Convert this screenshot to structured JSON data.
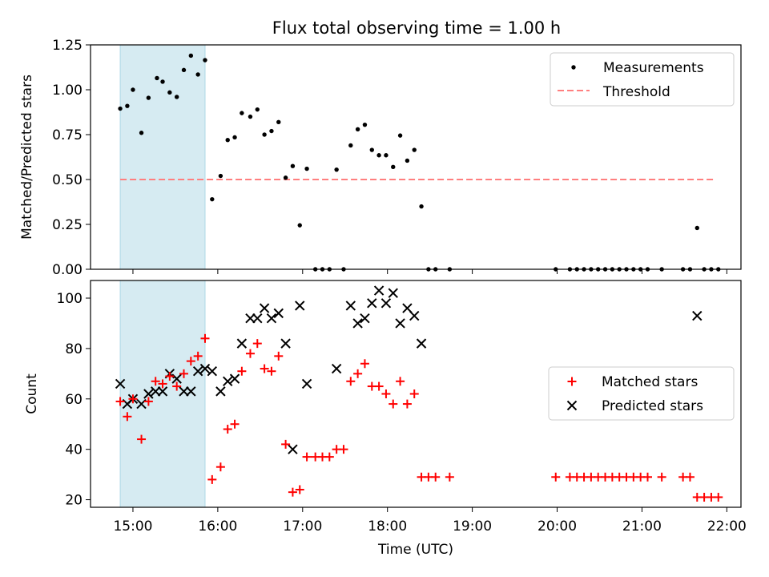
{
  "figure_title": "Flux total observing time = 1.00 h",
  "colors": {
    "measurement": "#000000",
    "threshold": "#ff7f7f",
    "matched": "#ff0000",
    "predicted": "#000000",
    "shade": "#add8e6"
  },
  "chart_data": [
    {
      "type": "scatter",
      "panel": "top",
      "title": "Flux total observing time = 1.00 h",
      "xlabel": "",
      "ylabel": "Matched/Predicted stars",
      "xlim": [
        "14:30",
        "22:10"
      ],
      "ylim": [
        0,
        1.25
      ],
      "yticks": [
        "0.00",
        "0.25",
        "0.50",
        "0.75",
        "1.00",
        "1.25"
      ],
      "shaded_span": [
        "14:51",
        "15:51"
      ],
      "legend": {
        "placement": "top-right",
        "entries": [
          "Measurements",
          "Threshold"
        ]
      },
      "threshold": {
        "name": "Threshold",
        "value": 0.5,
        "x": [
          "14:51",
          "21:51"
        ]
      },
      "series": [
        {
          "name": "Measurements",
          "marker": "dot",
          "points": [
            [
              "14:51",
              0.895
            ],
            [
              "14:56",
              0.91
            ],
            [
              "15:00",
              1.0
            ],
            [
              "15:06",
              0.76
            ],
            [
              "15:11",
              0.955
            ],
            [
              "15:17",
              1.065
            ],
            [
              "15:21",
              1.045
            ],
            [
              "15:26",
              0.985
            ],
            [
              "15:31",
              0.96
            ],
            [
              "15:36",
              1.11
            ],
            [
              "15:41",
              1.19
            ],
            [
              "15:46",
              1.085
            ],
            [
              "15:51",
              1.165
            ],
            [
              "15:56",
              0.39
            ],
            [
              "16:02",
              0.52
            ],
            [
              "16:07",
              0.72
            ],
            [
              "16:12",
              0.735
            ],
            [
              "16:17",
              0.87
            ],
            [
              "16:23",
              0.85
            ],
            [
              "16:28",
              0.89
            ],
            [
              "16:33",
              0.75
            ],
            [
              "16:38",
              0.77
            ],
            [
              "16:43",
              0.82
            ],
            [
              "16:48",
              0.51
            ],
            [
              "16:53",
              0.575
            ],
            [
              "16:58",
              0.245
            ],
            [
              "17:03",
              0.56
            ],
            [
              "17:09",
              0.0
            ],
            [
              "17:14",
              0.0
            ],
            [
              "17:19",
              0.0
            ],
            [
              "17:24",
              0.555
            ],
            [
              "17:29",
              0.0
            ],
            [
              "17:34",
              0.69
            ],
            [
              "17:39",
              0.78
            ],
            [
              "17:44",
              0.805
            ],
            [
              "17:49",
              0.665
            ],
            [
              "17:54",
              0.635
            ],
            [
              "17:59",
              0.635
            ],
            [
              "18:04",
              0.57
            ],
            [
              "18:09",
              0.745
            ],
            [
              "18:14",
              0.605
            ],
            [
              "18:19",
              0.665
            ],
            [
              "18:24",
              0.35
            ],
            [
              "18:29",
              0.0
            ],
            [
              "18:34",
              0.0
            ],
            [
              "18:44",
              0.0
            ],
            [
              "19:59",
              0.0
            ],
            [
              "20:09",
              0.0
            ],
            [
              "20:14",
              0.0
            ],
            [
              "20:19",
              0.0
            ],
            [
              "20:24",
              0.0
            ],
            [
              "20:29",
              0.0
            ],
            [
              "20:34",
              0.0
            ],
            [
              "20:39",
              0.0
            ],
            [
              "20:44",
              0.0
            ],
            [
              "20:49",
              0.0
            ],
            [
              "20:54",
              0.0
            ],
            [
              "20:59",
              0.0
            ],
            [
              "21:04",
              0.0
            ],
            [
              "21:14",
              0.0
            ],
            [
              "21:29",
              0.0
            ],
            [
              "21:34",
              0.0
            ],
            [
              "21:39",
              0.23
            ],
            [
              "21:44",
              0.0
            ],
            [
              "21:49",
              0.0
            ],
            [
              "21:54",
              0.0
            ]
          ]
        }
      ]
    },
    {
      "type": "scatter",
      "panel": "bottom",
      "title": "",
      "xlabel": "Time (UTC)",
      "ylabel": "Count",
      "xlim": [
        "14:30",
        "22:10"
      ],
      "ylim": [
        17,
        107
      ],
      "yticks": [
        "20",
        "40",
        "60",
        "80",
        "100"
      ],
      "xticks": [
        "15:00",
        "16:00",
        "17:00",
        "18:00",
        "19:00",
        "20:00",
        "21:00",
        "22:00"
      ],
      "shaded_span": [
        "14:51",
        "15:51"
      ],
      "legend": {
        "placement": "center-right",
        "entries": [
          "Matched stars",
          "Predicted stars"
        ]
      },
      "series": [
        {
          "name": "Matched stars",
          "marker": "plus",
          "points": [
            [
              "14:51",
              59
            ],
            [
              "14:56",
              53
            ],
            [
              "15:00",
              60
            ],
            [
              "15:06",
              44
            ],
            [
              "15:11",
              59
            ],
            [
              "15:16",
              67
            ],
            [
              "15:21",
              66
            ],
            [
              "15:26",
              69
            ],
            [
              "15:31",
              65
            ],
            [
              "15:36",
              70
            ],
            [
              "15:41",
              75
            ],
            [
              "15:46",
              77
            ],
            [
              "15:51",
              84
            ],
            [
              "15:56",
              28
            ],
            [
              "16:02",
              33
            ],
            [
              "16:07",
              48
            ],
            [
              "16:12",
              50
            ],
            [
              "16:17",
              71
            ],
            [
              "16:23",
              78
            ],
            [
              "16:28",
              82
            ],
            [
              "16:33",
              72
            ],
            [
              "16:38",
              71
            ],
            [
              "16:43",
              77
            ],
            [
              "16:48",
              42
            ],
            [
              "16:53",
              23
            ],
            [
              "16:58",
              24
            ],
            [
              "17:03",
              37
            ],
            [
              "17:09",
              37
            ],
            [
              "17:14",
              37
            ],
            [
              "17:19",
              37
            ],
            [
              "17:24",
              40
            ],
            [
              "17:29",
              40
            ],
            [
              "17:34",
              67
            ],
            [
              "17:39",
              70
            ],
            [
              "17:44",
              74
            ],
            [
              "17:49",
              65
            ],
            [
              "17:54",
              65
            ],
            [
              "17:59",
              62
            ],
            [
              "18:04",
              58
            ],
            [
              "18:09",
              67
            ],
            [
              "18:14",
              58
            ],
            [
              "18:19",
              62
            ],
            [
              "18:24",
              29
            ],
            [
              "18:29",
              29
            ],
            [
              "18:34",
              29
            ],
            [
              "18:44",
              29
            ],
            [
              "19:59",
              29
            ],
            [
              "20:09",
              29
            ],
            [
              "20:14",
              29
            ],
            [
              "20:19",
              29
            ],
            [
              "20:24",
              29
            ],
            [
              "20:29",
              29
            ],
            [
              "20:34",
              29
            ],
            [
              "20:39",
              29
            ],
            [
              "20:44",
              29
            ],
            [
              "20:49",
              29
            ],
            [
              "20:54",
              29
            ],
            [
              "20:59",
              29
            ],
            [
              "21:04",
              29
            ],
            [
              "21:14",
              29
            ],
            [
              "21:29",
              29
            ],
            [
              "21:34",
              29
            ],
            [
              "21:39",
              21
            ],
            [
              "21:44",
              21
            ],
            [
              "21:49",
              21
            ],
            [
              "21:54",
              21
            ]
          ]
        },
        {
          "name": "Predicted stars",
          "marker": "x",
          "points": [
            [
              "14:51",
              66
            ],
            [
              "14:56",
              58
            ],
            [
              "15:00",
              60
            ],
            [
              "15:06",
              58
            ],
            [
              "15:11",
              62
            ],
            [
              "15:16",
              63
            ],
            [
              "15:21",
              63
            ],
            [
              "15:26",
              70
            ],
            [
              "15:31",
              68
            ],
            [
              "15:36",
              63
            ],
            [
              "15:41",
              63
            ],
            [
              "15:46",
              71
            ],
            [
              "15:51",
              72
            ],
            [
              "15:56",
              71
            ],
            [
              "16:02",
              63
            ],
            [
              "16:07",
              67
            ],
            [
              "16:12",
              68
            ],
            [
              "16:17",
              82
            ],
            [
              "16:23",
              92
            ],
            [
              "16:28",
              92
            ],
            [
              "16:33",
              96
            ],
            [
              "16:38",
              92
            ],
            [
              "16:43",
              94
            ],
            [
              "16:48",
              82
            ],
            [
              "16:53",
              40
            ],
            [
              "16:58",
              97
            ],
            [
              "17:03",
              66
            ],
            [
              "17:24",
              72
            ],
            [
              "17:34",
              97
            ],
            [
              "17:39",
              90
            ],
            [
              "17:44",
              92
            ],
            [
              "17:49",
              98
            ],
            [
              "17:54",
              103
            ],
            [
              "17:59",
              98
            ],
            [
              "18:04",
              102
            ],
            [
              "18:09",
              90
            ],
            [
              "18:14",
              96
            ],
            [
              "18:19",
              93
            ],
            [
              "18:24",
              82
            ],
            [
              "21:39",
              93
            ]
          ]
        }
      ]
    }
  ]
}
